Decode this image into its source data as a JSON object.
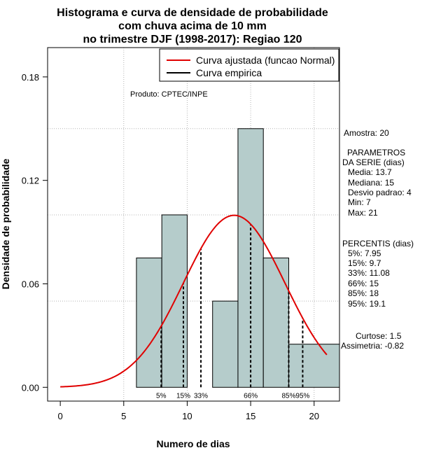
{
  "chart_data": {
    "type": "bar",
    "title_lines": [
      "Histograma e curva de densidade de probabilidade",
      "com chuva acima de 10 mm",
      "no trimestre DJF (1998-2017): Regiao 120"
    ],
    "xlabel": "Numero de dias",
    "ylabel": "Densidade de probabilidade",
    "xlim": [
      -1,
      22
    ],
    "ylim": [
      -0.008,
      0.197
    ],
    "x_ticks": [
      0,
      5,
      10,
      15,
      20
    ],
    "y_ticks": [
      0.0,
      0.06,
      0.12,
      0.18
    ],
    "x_tick_labels": [
      "0",
      "5",
      "10",
      "15",
      "20"
    ],
    "y_tick_labels": [
      "0.00",
      "0.06",
      "0.12",
      "0.18"
    ],
    "grid_x": [
      5,
      10,
      15,
      20
    ],
    "grid_y": [
      0.05,
      0.1,
      0.15
    ],
    "bins": [
      {
        "x0": 6,
        "x1": 8,
        "density": 0.075
      },
      {
        "x0": 8,
        "x1": 10,
        "density": 0.1
      },
      {
        "x0": 12,
        "x1": 14,
        "density": 0.05
      },
      {
        "x0": 14,
        "x1": 16,
        "density": 0.15
      },
      {
        "x0": 16,
        "x1": 18,
        "density": 0.075
      },
      {
        "x0": 18,
        "x1": 22,
        "density": 0.025
      }
    ],
    "normal_fit": {
      "mean": 13.7,
      "sd": 4,
      "x_from": 0,
      "x_to": 21
    },
    "percentile_lines": [
      {
        "label": "5%",
        "x": 7.95
      },
      {
        "label": "15%",
        "x": 9.7
      },
      {
        "label": "33%",
        "x": 11.08
      },
      {
        "label": "66%",
        "x": 15
      },
      {
        "label": "85%",
        "x": 18
      },
      {
        "label": "95%",
        "x": 19.1
      }
    ],
    "legend": {
      "position": "top-right",
      "entries": [
        {
          "label": "Curva ajustada (funcao Normal)",
          "color": "#e00000"
        },
        {
          "label": "Curva empirica",
          "color": "#000000"
        }
      ]
    },
    "product_note": "Produto: CPTEC/INPE",
    "colors": {
      "bar_fill": "#b5cccb",
      "curve": "#e00000",
      "grid": "#b4b4b4"
    }
  },
  "side_panel": {
    "amostra": "Amostra: 20",
    "parametros_title": "PARAMETROS",
    "parametros_subtitle": "DA SERIE (dias)",
    "parametros": [
      "Media: 13.7",
      "Mediana: 15",
      "Desvio padrao: 4",
      "Min: 7",
      "Max: 21"
    ],
    "percentis_title": "PERCENTIS (dias)",
    "percentis": [
      "5%: 7.95",
      "15%: 9.7",
      "33%: 11.08",
      "66%: 15",
      "85%: 18",
      "95%: 19.1"
    ],
    "curtose": "Curtose: 1.5",
    "assimetria": "Assimetria: -0.82"
  }
}
